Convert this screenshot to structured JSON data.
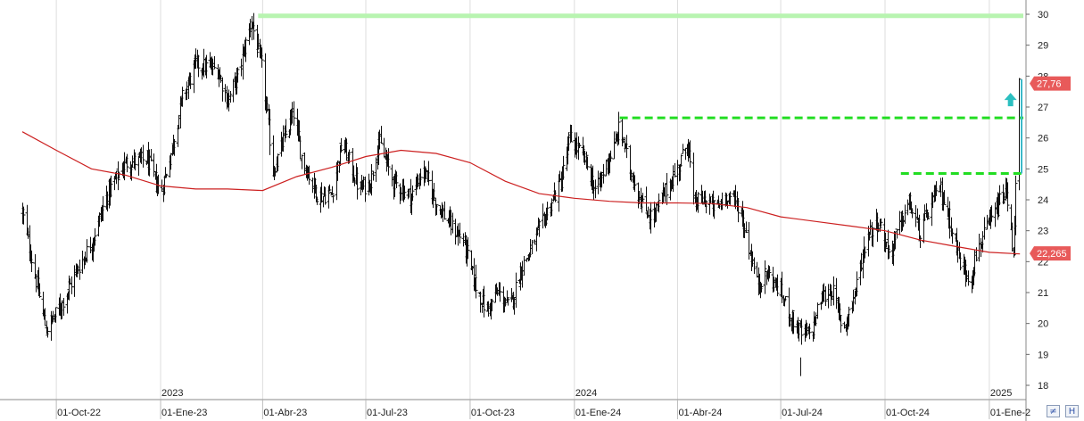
{
  "chart_data": {
    "type": "candlestick",
    "y_axis": {
      "side": "right",
      "min": 17.7,
      "max": 30.5,
      "ticks": [
        18,
        19,
        20,
        21,
        22,
        23,
        24,
        25,
        26,
        27,
        28,
        29,
        30
      ]
    },
    "x_axis": {
      "start": "2022-09-01",
      "end": "2025-01-31",
      "month_labels": [
        {
          "date": "2022-10-01",
          "label": "01-Oct-22"
        },
        {
          "date": "2023-01-01",
          "label": "01-Ene-23"
        },
        {
          "date": "2023-04-01",
          "label": "01-Abr-23"
        },
        {
          "date": "2023-07-01",
          "label": "01-Jul-23"
        },
        {
          "date": "2023-10-01",
          "label": "01-Oct-23"
        },
        {
          "date": "2024-01-01",
          "label": "01-Ene-24"
        },
        {
          "date": "2024-04-01",
          "label": "01-Abr-24"
        },
        {
          "date": "2024-07-01",
          "label": "01-Jul-24"
        },
        {
          "date": "2024-10-01",
          "label": "01-Oct-24"
        },
        {
          "date": "2025-01-01",
          "label": "01-Ene-2"
        }
      ],
      "year_labels": [
        {
          "date": "2023-01-01",
          "label": "2023"
        },
        {
          "date": "2024-01-01",
          "label": "2024"
        },
        {
          "date": "2025-01-01",
          "label": "2025"
        }
      ]
    },
    "price_path": [
      [
        "2022-09-01",
        23.6
      ],
      [
        "2022-09-10",
        21.9
      ],
      [
        "2022-09-22",
        19.8
      ],
      [
        "2022-10-05",
        20.6
      ],
      [
        "2022-10-20",
        21.8
      ],
      [
        "2022-11-01",
        22.6
      ],
      [
        "2022-11-15",
        24.2
      ],
      [
        "2022-12-01",
        25.2
      ],
      [
        "2022-12-20",
        25.3
      ],
      [
        "2023-01-01",
        24.2
      ],
      [
        "2023-01-10",
        25.5
      ],
      [
        "2023-01-20",
        27.3
      ],
      [
        "2023-02-01",
        28.4
      ],
      [
        "2023-02-20",
        28.2
      ],
      [
        "2023-03-01",
        27.2
      ],
      [
        "2023-03-10",
        28.0
      ],
      [
        "2023-03-22",
        29.8
      ],
      [
        "2023-04-01",
        28.1
      ],
      [
        "2023-04-10",
        24.9
      ],
      [
        "2023-04-18",
        25.8
      ],
      [
        "2023-04-28",
        26.8
      ],
      [
        "2023-05-05",
        25.4
      ],
      [
        "2023-05-20",
        24.1
      ],
      [
        "2023-06-01",
        24.2
      ],
      [
        "2023-06-10",
        25.9
      ],
      [
        "2023-06-25",
        24.3
      ],
      [
        "2023-07-05",
        24.6
      ],
      [
        "2023-07-12",
        25.9
      ],
      [
        "2023-07-25",
        24.6
      ],
      [
        "2023-08-10",
        24.1
      ],
      [
        "2023-08-20",
        25.0
      ],
      [
        "2023-09-01",
        23.9
      ],
      [
        "2023-09-15",
        23.1
      ],
      [
        "2023-09-25",
        22.7
      ],
      [
        "2023-10-05",
        21.3
      ],
      [
        "2023-10-15",
        20.4
      ],
      [
        "2023-10-25",
        21.0
      ],
      [
        "2023-11-05",
        20.5
      ],
      [
        "2023-11-15",
        21.8
      ],
      [
        "2023-11-25",
        22.5
      ],
      [
        "2023-12-10",
        23.8
      ],
      [
        "2023-12-20",
        24.6
      ],
      [
        "2023-12-28",
        26.0
      ],
      [
        "2024-01-10",
        25.3
      ],
      [
        "2024-01-20",
        24.2
      ],
      [
        "2024-01-28",
        25.1
      ],
      [
        "2024-02-05",
        25.7
      ],
      [
        "2024-02-10",
        26.4
      ],
      [
        "2024-02-18",
        25.1
      ],
      [
        "2024-03-01",
        23.8
      ],
      [
        "2024-03-10",
        23.4
      ],
      [
        "2024-03-20",
        24.2
      ],
      [
        "2024-04-01",
        25.0
      ],
      [
        "2024-04-10",
        25.9
      ],
      [
        "2024-04-15",
        23.9
      ],
      [
        "2024-04-25",
        24.0
      ],
      [
        "2024-05-05",
        23.7
      ],
      [
        "2024-05-15",
        24.2
      ],
      [
        "2024-05-25",
        23.8
      ],
      [
        "2024-06-01",
        22.8
      ],
      [
        "2024-06-10",
        21.3
      ],
      [
        "2024-06-20",
        21.6
      ],
      [
        "2024-07-01",
        21.0
      ],
      [
        "2024-07-10",
        20.2
      ],
      [
        "2024-07-20",
        19.6
      ],
      [
        "2024-07-28",
        19.7
      ],
      [
        "2024-08-05",
        20.8
      ],
      [
        "2024-08-15",
        21.1
      ],
      [
        "2024-08-25",
        19.8
      ],
      [
        "2024-09-05",
        21.1
      ],
      [
        "2024-09-15",
        22.9
      ],
      [
        "2024-09-25",
        23.3
      ],
      [
        "2024-10-05",
        22.2
      ],
      [
        "2024-10-15",
        23.3
      ],
      [
        "2024-10-22",
        23.9
      ],
      [
        "2024-11-01",
        22.9
      ],
      [
        "2024-11-10",
        23.8
      ],
      [
        "2024-11-18",
        24.4
      ],
      [
        "2024-11-28",
        23.2
      ],
      [
        "2024-12-05",
        22.1
      ],
      [
        "2024-12-15",
        21.4
      ],
      [
        "2024-12-22",
        22.5
      ],
      [
        "2024-12-28",
        22.9
      ],
      [
        "2025-01-05",
        23.5
      ],
      [
        "2025-01-12",
        24.1
      ],
      [
        "2025-01-16",
        24.2
      ],
      [
        "2025-01-22",
        22.3
      ],
      [
        "2025-01-27",
        27.7
      ]
    ],
    "moving_average": {
      "color": "#cc2020",
      "points": [
        [
          "2022-09-01",
          26.2
        ],
        [
          "2022-10-01",
          25.6
        ],
        [
          "2022-11-01",
          25.0
        ],
        [
          "2022-12-01",
          24.8
        ],
        [
          "2023-01-01",
          24.45
        ],
        [
          "2023-02-01",
          24.35
        ],
        [
          "2023-03-01",
          24.35
        ],
        [
          "2023-04-01",
          24.3
        ],
        [
          "2023-05-01",
          24.75
        ],
        [
          "2023-06-01",
          25.05
        ],
        [
          "2023-07-01",
          25.4
        ],
        [
          "2023-08-01",
          25.6
        ],
        [
          "2023-09-01",
          25.5
        ],
        [
          "2023-10-01",
          25.2
        ],
        [
          "2023-11-01",
          24.6
        ],
        [
          "2023-12-01",
          24.2
        ],
        [
          "2024-01-01",
          24.05
        ],
        [
          "2024-02-01",
          23.95
        ],
        [
          "2024-03-01",
          23.9
        ],
        [
          "2024-04-01",
          23.9
        ],
        [
          "2024-05-01",
          23.88
        ],
        [
          "2024-06-01",
          23.75
        ],
        [
          "2024-07-01",
          23.45
        ],
        [
          "2024-08-01",
          23.3
        ],
        [
          "2024-09-01",
          23.15
        ],
        [
          "2024-10-01",
          23.0
        ],
        [
          "2024-11-01",
          22.7
        ],
        [
          "2024-12-01",
          22.5
        ],
        [
          "2025-01-01",
          22.3
        ],
        [
          "2025-01-28",
          22.25
        ]
      ]
    },
    "resistance_lines": [
      {
        "name": "level-30",
        "y": 29.95,
        "from": "2023-03-28",
        "to": "2025-01-31",
        "style": "solid",
        "color": "#b8f4b0"
      },
      {
        "name": "level-26-65",
        "y": 26.65,
        "from": "2024-02-10",
        "to": "2025-01-31",
        "style": "dashed",
        "color": "#22dd22"
      },
      {
        "name": "level-24-85",
        "y": 24.85,
        "from": "2024-10-15",
        "to": "2025-01-31",
        "style": "dashed",
        "color": "#22dd22"
      }
    ],
    "breakout_line": {
      "date": "2025-01-27",
      "from": 24.85,
      "to": 27.9,
      "color": "#3ab8c8"
    },
    "breakout_arrow": {
      "date": "2025-01-15",
      "y": 27.2,
      "color": "#2bbfc0",
      "direction": "up"
    },
    "price_tags": [
      {
        "value": 27.76,
        "label": "27,76",
        "color": "#e85a5a"
      },
      {
        "value": 22.265,
        "label": "22,265",
        "color": "#e85a5a"
      }
    ]
  },
  "controls": {
    "zoom_icon": "zoom-icon",
    "scroll_icon": "scroll-end-icon"
  }
}
